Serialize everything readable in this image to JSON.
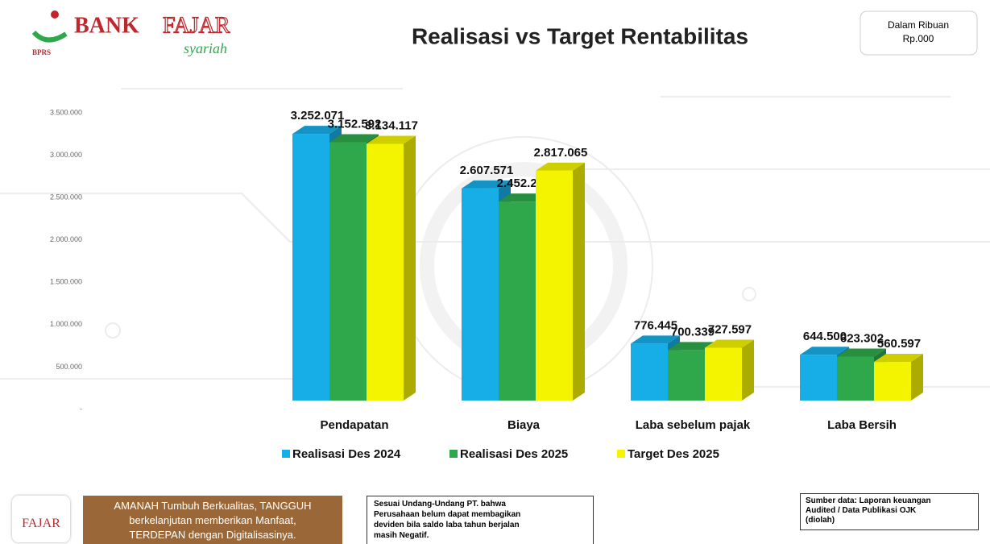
{
  "header": {
    "bank": "BANK",
    "name": "FAJAR",
    "tagline": "syariah",
    "bprs": "BPRS",
    "unit_lines": [
      "Dalam Ribuan",
      "Rp.000"
    ]
  },
  "chart_data": {
    "type": "bar3d",
    "title": "Realisasi vs Target Rentabilitas",
    "categories": [
      "Pendapatan",
      "Biaya",
      "Laba sebelum pajak",
      "Laba Bersih"
    ],
    "series": [
      {
        "name": "Realisasi Des 2024",
        "color": "#17aee8",
        "values": [
          3252071,
          2607571,
          776445,
          644500
        ],
        "value_labels": [
          "3.252.071",
          "2.607.571",
          "776.445",
          "644.500"
        ]
      },
      {
        "name": "Realisasi Des 2025",
        "color": "#2ea84a",
        "values": [
          3152592,
          2452253,
          700339,
          623302
        ],
        "value_labels": [
          "3.152.592",
          "2.452.253",
          "700.339",
          "623.302"
        ]
      },
      {
        "name": "Target Des 2025",
        "color": "#f4f400",
        "values": [
          3134117,
          2817065,
          727597,
          560597
        ],
        "value_labels": [
          "3.134.117",
          "2.817.065",
          "727.597",
          "560.597"
        ]
      }
    ],
    "ylim": [
      0,
      3500000
    ],
    "yticks": [
      {
        "value": 0,
        "label": "-"
      },
      {
        "value": 500000,
        "label": "500.000"
      },
      {
        "value": 1000000,
        "label": "1.000.000"
      },
      {
        "value": 1500000,
        "label": "1.500.000"
      },
      {
        "value": 2000000,
        "label": "2.000.000"
      },
      {
        "value": 2500000,
        "label": "2.500.000"
      },
      {
        "value": 3000000,
        "label": "3.000.000"
      },
      {
        "value": 3500000,
        "label": "3.500.000"
      }
    ],
    "legend": "bottom"
  },
  "footer": {
    "logo": "FAJAR",
    "motto": [
      "AMANAH Tumbuh Berkualitas, TANGGUH",
      "berkelanjutan memberikan Manfaat,",
      "TERDEPAN dengan Digitalisasinya."
    ],
    "note": [
      "Sesuai Undang-Undang PT. bahwa",
      "Perusahaan belum dapat membagikan",
      "deviden bila saldo laba tahun berjalan",
      "masih Negatif."
    ],
    "source": [
      "Sumber data: Laporan keuangan",
      "Audited / Data Publikasi OJK",
      "(diolah)"
    ]
  }
}
